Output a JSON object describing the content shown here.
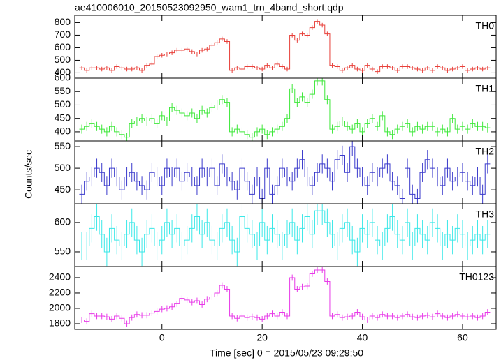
{
  "chart_data": {
    "type": "step",
    "title": "ae410006010_20150523092950_wam1_trn_4band_short.qdp",
    "xlabel": "Time [sec] 0 = 2015/05/23 09:29:50",
    "ylabel": "Counts/sec",
    "xlim": [
      -17.4,
      66.7
    ],
    "xticks": [
      0,
      20,
      40,
      60
    ],
    "x": [
      -16,
      -15,
      -14,
      -13,
      -12,
      -11,
      -10,
      -9,
      -8,
      -7,
      -6,
      -5,
      -4,
      -3,
      -2,
      -1,
      0,
      1,
      2,
      3,
      4,
      5,
      6,
      7,
      8,
      9,
      10,
      11,
      12,
      13,
      14,
      15,
      16,
      17,
      18,
      19,
      20,
      21,
      22,
      23,
      24,
      25,
      26,
      27,
      28,
      29,
      30,
      31,
      32,
      33,
      34,
      35,
      36,
      37,
      38,
      39,
      40,
      41,
      42,
      43,
      44,
      45,
      46,
      47,
      48,
      49,
      50,
      51,
      52,
      53,
      54,
      55,
      56,
      57,
      58,
      59,
      60,
      61,
      62,
      63,
      64,
      65
    ],
    "panels": [
      {
        "name": "TH0",
        "color": "#e8403a",
        "ylim": [
          358,
          858
        ],
        "yticks": [
          400,
          500,
          600,
          700,
          800
        ],
        "error": 18,
        "values": [
          440,
          420,
          440,
          440,
          430,
          440,
          420,
          450,
          440,
          430,
          430,
          440,
          420,
          460,
          470,
          530,
          540,
          550,
          560,
          580,
          580,
          590,
          570,
          550,
          580,
          590,
          620,
          640,
          670,
          650,
          420,
          440,
          430,
          450,
          450,
          440,
          430,
          460,
          440,
          470,
          450,
          430,
          700,
          660,
          710,
          700,
          760,
          810,
          780,
          710,
          460,
          450,
          420,
          440,
          460,
          430,
          420,
          460,
          430,
          410,
          450,
          450,
          440,
          420,
          450,
          450,
          440,
          430,
          420,
          440,
          420,
          450,
          440,
          420,
          430,
          440,
          450,
          420,
          430,
          440,
          430,
          440
        ]
      },
      {
        "name": "TH1",
        "color": "#3ee83a",
        "ylim": [
          366,
          600
        ],
        "yticks": [
          400,
          450,
          500,
          550,
          600
        ],
        "error": 17,
        "values": [
          410,
          420,
          430,
          420,
          410,
          400,
          420,
          400,
          390,
          380,
          430,
          440,
          450,
          440,
          450,
          430,
          460,
          440,
          490,
          480,
          470,
          460,
          470,
          450,
          480,
          470,
          490,
          500,
          520,
          510,
          400,
          410,
          400,
          390,
          380,
          400,
          410,
          390,
          400,
          410,
          420,
          450,
          560,
          510,
          530,
          510,
          540,
          590,
          590,
          520,
          410,
          420,
          440,
          420,
          410,
          430,
          400,
          430,
          450,
          420,
          460,
          400,
          390,
          410,
          420,
          430,
          400,
          420,
          410,
          420,
          420,
          400,
          410,
          400,
          450,
          410,
          420,
          410,
          430,
          420,
          420,
          415
        ]
      },
      {
        "name": "TH2",
        "color": "#3a3acc",
        "ylim": [
          418,
          563
        ],
        "yticks": [
          450,
          500,
          550
        ],
        "error": 22,
        "values": [
          440,
          470,
          480,
          500,
          490,
          460,
          500,
          480,
          450,
          480,
          490,
          470,
          460,
          450,
          490,
          480,
          460,
          500,
          480,
          500,
          470,
          490,
          480,
          460,
          500,
          480,
          500,
          460,
          510,
          480,
          470,
          450,
          500,
          470,
          440,
          480,
          430,
          500,
          440,
          460,
          500,
          480,
          470,
          500,
          520,
          480,
          460,
          490,
          510,
          500,
          470,
          520,
          530,
          490,
          550,
          500,
          480,
          460,
          490,
          480,
          500,
          510,
          470,
          460,
          430,
          500,
          440,
          430,
          490,
          520,
          500,
          480,
          460,
          500,
          470,
          480,
          490,
          470,
          460,
          480,
          440,
          510
        ]
      },
      {
        "name": "TH3",
        "color": "#3ae8e8",
        "ylim": [
          525,
          632
        ],
        "yticks": [
          550,
          600
        ],
        "error": 24,
        "values": [
          560,
          560,
          590,
          610,
          580,
          550,
          590,
          570,
          560,
          580,
          600,
          570,
          550,
          580,
          590,
          560,
          570,
          600,
          580,
          590,
          560,
          570,
          590,
          610,
          580,
          600,
          570,
          560,
          590,
          600,
          570,
          550,
          610,
          590,
          580,
          560,
          600,
          570,
          590,
          580,
          560,
          580,
          600,
          570,
          590,
          610,
          580,
          620,
          620,
          600,
          580,
          560,
          590,
          600,
          570,
          550,
          590,
          580,
          600,
          570,
          560,
          590,
          610,
          580,
          570,
          600,
          560,
          590,
          580,
          570,
          600,
          590,
          560,
          580,
          570,
          590,
          580,
          560,
          570,
          580,
          570,
          580
        ]
      },
      {
        "name": "TH0123",
        "color": "#e83ae8",
        "ylim": [
          1727,
          2545
        ],
        "yticks": [
          1800,
          2000,
          2200,
          2400
        ],
        "error": 40,
        "values": [
          1850,
          1830,
          1930,
          1900,
          1900,
          1890,
          1860,
          1900,
          1870,
          1800,
          1880,
          1920,
          1910,
          1910,
          1940,
          1960,
          1990,
          2000,
          2020,
          2060,
          2130,
          2110,
          2080,
          2100,
          2050,
          2120,
          2150,
          2200,
          2300,
          2250,
          1900,
          1870,
          1900,
          1880,
          1890,
          1880,
          1860,
          1900,
          1930,
          1900,
          1950,
          1900,
          2400,
          2250,
          2280,
          2290,
          2450,
          2500,
          2500,
          2350,
          1900,
          1920,
          1880,
          1890,
          1900,
          1950,
          1890,
          1850,
          1900,
          1880,
          1920,
          1900,
          1900,
          1880,
          1900,
          1920,
          1890,
          1880,
          1900,
          1910,
          1890,
          1930,
          1900,
          1880,
          1900,
          1920,
          1900,
          1890,
          1900,
          1880,
          1900,
          1950
        ]
      }
    ]
  }
}
